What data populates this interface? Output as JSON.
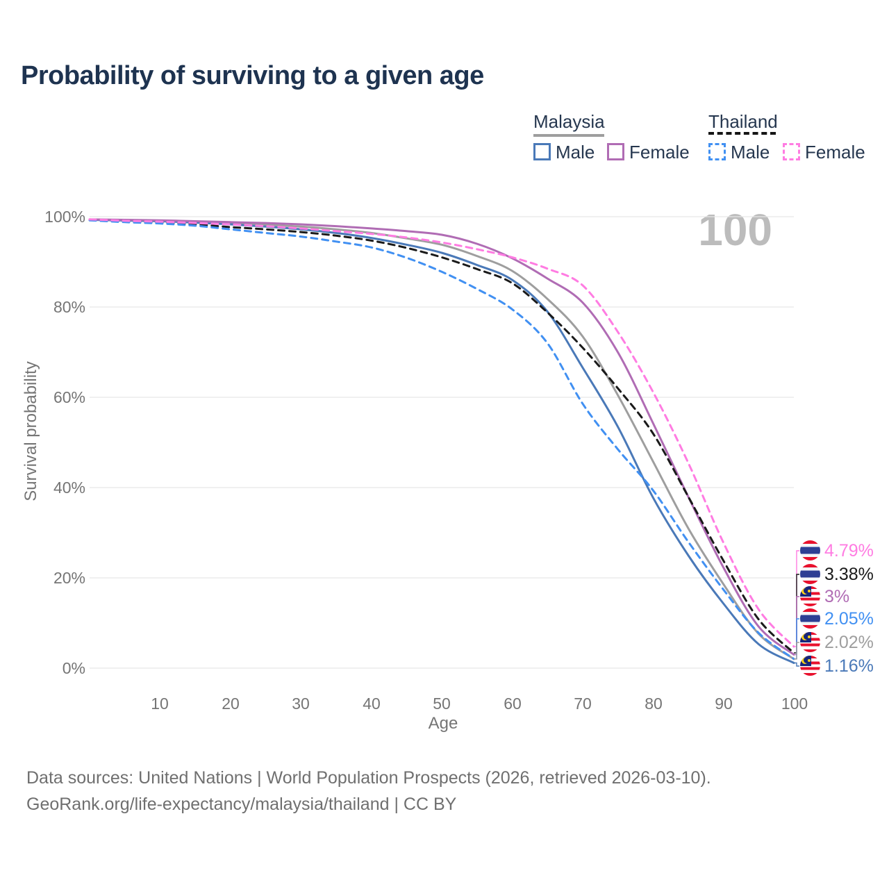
{
  "title": "Probability of surviving to a given age",
  "watermark": "100",
  "legend": {
    "groups": [
      {
        "label": "Malaysia",
        "line_style": "solid",
        "underline_color": "#9e9e9e",
        "items": [
          {
            "label": "Male",
            "color": "#4a79b8"
          },
          {
            "label": "Female",
            "color": "#b06cb4"
          }
        ]
      },
      {
        "label": "Thailand",
        "line_style": "dashed",
        "underline_color": "#151515",
        "items": [
          {
            "label": "Male",
            "color": "#4190f2"
          },
          {
            "label": "Female",
            "color": "#ff7ce2"
          }
        ]
      }
    ]
  },
  "chart_data": {
    "type": "line",
    "title": "Probability of surviving to a given age",
    "xlabel": "Age",
    "ylabel": "Survival probability",
    "xlim": [
      0,
      100
    ],
    "ylim": [
      0,
      100
    ],
    "grid": "horizontal",
    "legend_position": "top-right",
    "x_tick_labels": [
      "10",
      "20",
      "30",
      "40",
      "50",
      "60",
      "70",
      "80",
      "90",
      "100"
    ],
    "y_tick_labels": [
      "100%",
      "80%",
      "60%",
      "40%",
      "20%",
      "0%"
    ],
    "x": [
      0,
      5,
      10,
      15,
      20,
      25,
      30,
      35,
      40,
      45,
      50,
      55,
      60,
      65,
      70,
      75,
      80,
      85,
      90,
      95,
      100
    ],
    "series": [
      {
        "key": "my_total",
        "name": "Malaysia",
        "sex": "both",
        "line_style": "solid",
        "color": "#9e9e9e",
        "values": [
          99.35,
          99.25,
          99.1,
          98.9,
          98.6,
          98.2,
          97.8,
          97.2,
          96.4,
          95.2,
          93.8,
          91.3,
          88.0,
          81.8,
          73.5,
          60.5,
          45.8,
          31.0,
          18.6,
          7.6,
          2.02
        ]
      },
      {
        "key": "my_male",
        "name": "Malaysia Male",
        "sex": "male",
        "line_style": "solid",
        "color": "#4a79b8",
        "values": [
          99.3,
          99.15,
          99.0,
          98.7,
          98.3,
          97.8,
          97.2,
          96.4,
          95.3,
          93.8,
          92.0,
          89.3,
          86.0,
          79.0,
          66.6,
          53.5,
          37.8,
          25.0,
          14.3,
          5.3,
          1.16
        ]
      },
      {
        "key": "my_female",
        "name": "Malaysia Female",
        "sex": "female",
        "line_style": "solid",
        "color": "#b06cb4",
        "values": [
          99.4,
          99.3,
          99.2,
          99.0,
          98.8,
          98.6,
          98.3,
          97.9,
          97.4,
          96.8,
          96.0,
          94.0,
          90.8,
          86.3,
          81.0,
          70.0,
          54.3,
          38.0,
          22.3,
          9.2,
          3.0
        ]
      },
      {
        "key": "th_total",
        "name": "Thailand",
        "sex": "both",
        "line_style": "dashed",
        "color": "#1a1a1a",
        "values": [
          99.3,
          99.0,
          98.7,
          98.3,
          97.7,
          97.2,
          96.6,
          95.8,
          94.7,
          93.1,
          91.0,
          88.4,
          85.3,
          78.8,
          71.0,
          62.0,
          52.0,
          38.0,
          23.8,
          10.8,
          3.38
        ]
      },
      {
        "key": "th_male",
        "name": "Thailand Male",
        "sex": "male",
        "line_style": "dashed",
        "color": "#4190f2",
        "values": [
          99.2,
          98.8,
          98.5,
          98.0,
          97.2,
          96.4,
          95.6,
          94.5,
          93.2,
          90.9,
          87.8,
          84.0,
          79.5,
          72.0,
          58.6,
          48.5,
          39.4,
          28.0,
          17.4,
          7.8,
          2.05
        ]
      },
      {
        "key": "th_female",
        "name": "Thailand Female",
        "sex": "female",
        "line_style": "dashed",
        "color": "#ff7ce2",
        "values": [
          99.4,
          99.1,
          98.9,
          98.6,
          98.3,
          97.9,
          97.4,
          96.8,
          96.2,
          95.4,
          94.3,
          92.8,
          91.0,
          88.5,
          84.8,
          74.5,
          61.2,
          45.5,
          27.8,
          13.0,
          4.79
        ]
      }
    ],
    "end_labels": [
      {
        "text": "4.79%",
        "series": "th_female",
        "flag": "thailand",
        "color": "#ff7ce2"
      },
      {
        "text": "3.38%",
        "series": "th_total",
        "flag": "thailand",
        "color": "#1a1a1a"
      },
      {
        "text": "3%",
        "series": "my_female",
        "flag": "malaysia",
        "color": "#b06cb4"
      },
      {
        "text": "2.05%",
        "series": "th_male",
        "flag": "thailand",
        "color": "#4190f2"
      },
      {
        "text": "2.02%",
        "series": "my_total",
        "flag": "malaysia",
        "color": "#9e9e9e"
      },
      {
        "text": "1.16%",
        "series": "my_male",
        "flag": "malaysia",
        "color": "#4a79b8"
      }
    ]
  },
  "footer": {
    "line1": "Data sources: United Nations | World Population Prospects (2026, retrieved 2026-03-10).",
    "line2": "GeoRank.org/life-expectancy/malaysia/thailand | CC BY"
  }
}
